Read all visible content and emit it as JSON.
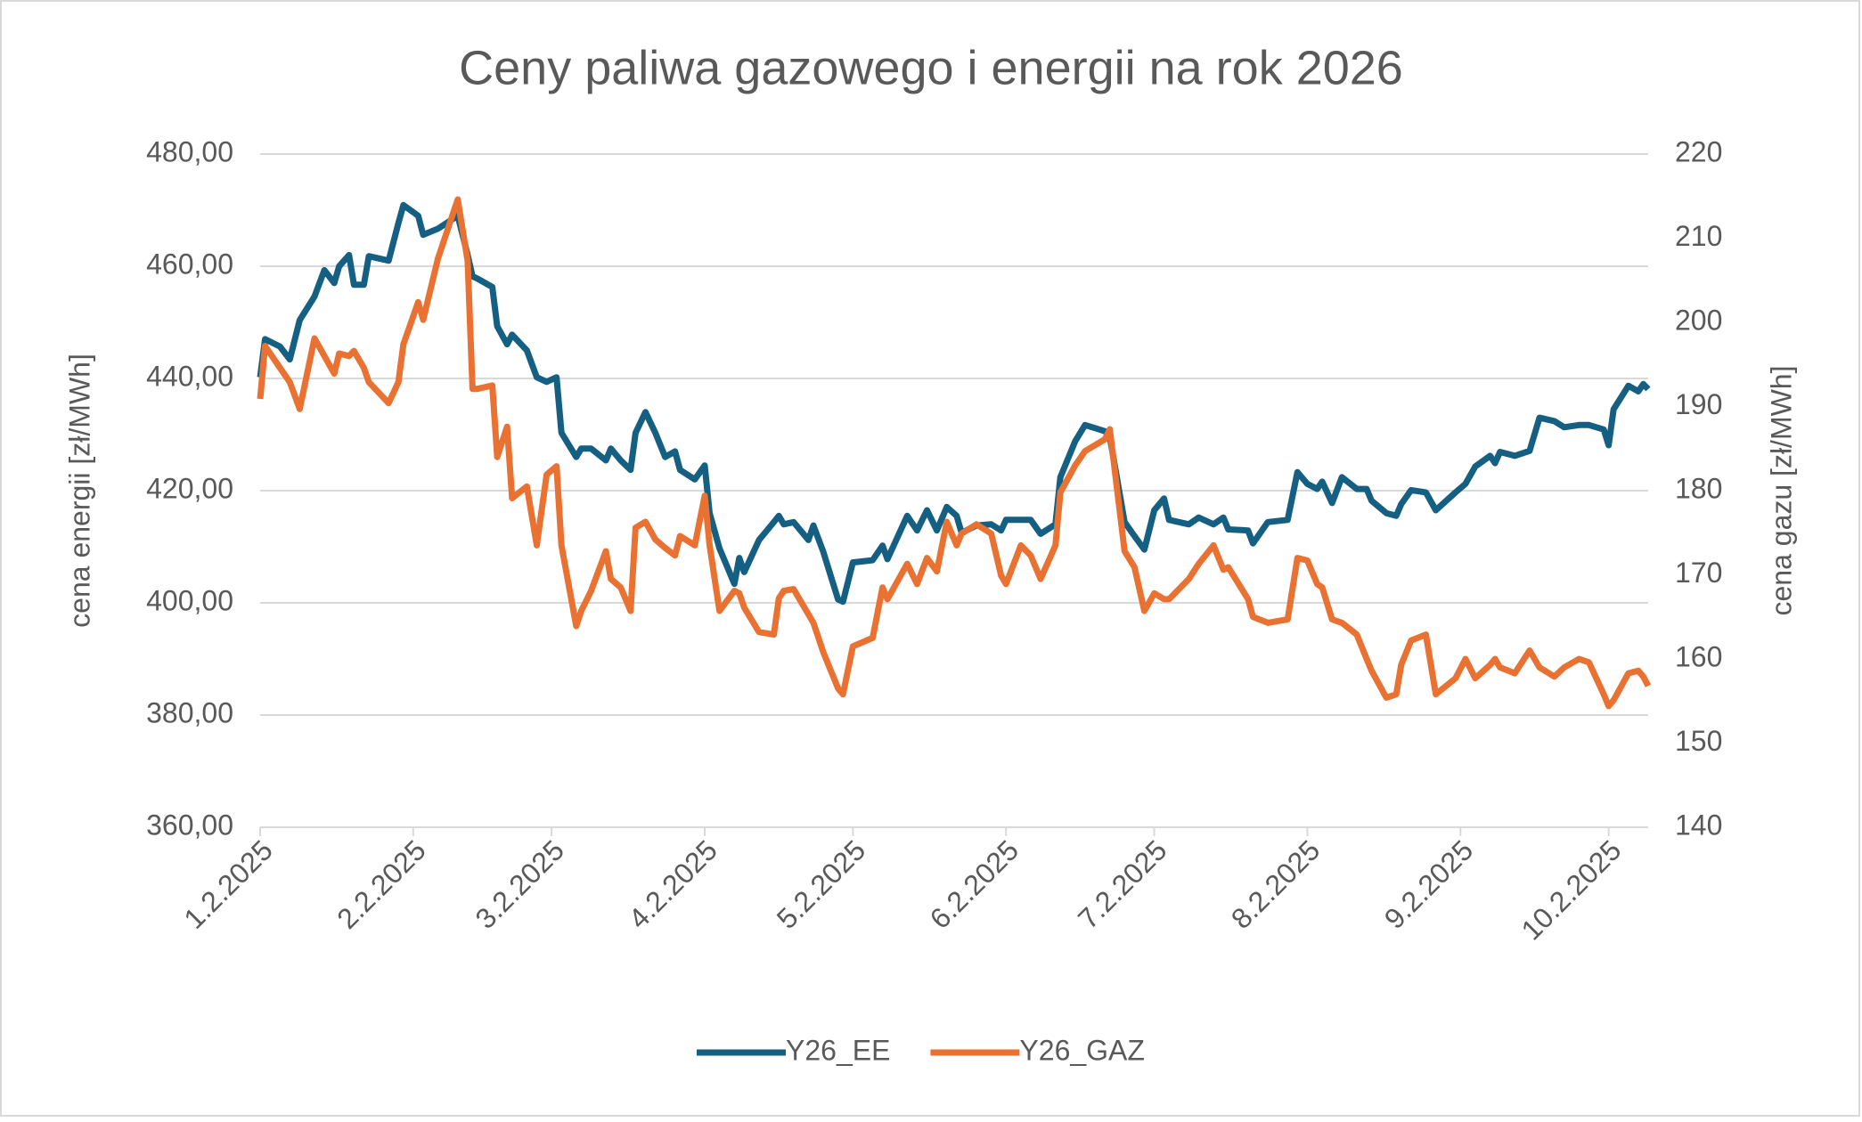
{
  "chart_data": {
    "type": "line",
    "title": "Ceny paliwa gazowego i energii na rok 2026",
    "ylabel": "cena energii [zł/MWh]",
    "y2label": "cena gazu [zł/MWh]",
    "x": [
      0,
      1,
      4,
      6,
      8,
      11,
      13,
      15,
      16,
      18,
      19,
      21,
      22,
      26,
      28,
      29,
      32,
      33,
      36,
      40,
      42,
      43,
      44,
      47,
      48,
      50,
      51,
      54,
      56,
      58,
      60,
      61,
      64,
      65,
      67,
      70,
      71,
      73,
      75,
      76,
      78,
      80,
      82,
      84,
      85,
      88,
      90,
      91,
      93,
      96,
      97,
      98,
      101,
      104,
      105,
      106,
      108,
      111,
      112,
      114,
      117,
      118,
      120,
      124,
      126,
      127,
      131,
      133,
      135,
      137,
      139,
      141,
      142,
      145,
      148,
      150,
      151,
      154,
      156,
      158,
      161,
      162,
      165,
      167,
      171,
      172,
      175,
      177,
      179,
      181,
      183,
      184,
      188,
      190,
      193,
      195,
      196,
      200,
      201,
      204,
      208,
      210,
      212,
      214,
      215,
      217,
      219,
      222,
      224,
      225,
      228,
      230,
      231,
      233,
      236,
      238,
      242,
      244,
      246,
      249,
      250,
      251,
      254,
      257,
      259,
      262,
      264,
      267,
      269,
      272,
      273,
      274,
      277,
      279,
      280,
      281
    ],
    "xlim": [
      0,
      281
    ],
    "xticks": [
      {
        "value": 0,
        "label": "1.2.2025"
      },
      {
        "value": 31,
        "label": "2.2.2025"
      },
      {
        "value": 59,
        "label": "3.2.2025"
      },
      {
        "value": 90,
        "label": "4.2.2025"
      },
      {
        "value": 120,
        "label": "5.2.2025"
      },
      {
        "value": 151,
        "label": "6.2.2025"
      },
      {
        "value": 181,
        "label": "7.2.2025"
      },
      {
        "value": 212,
        "label": "8.2.2025"
      },
      {
        "value": 243,
        "label": "9.2.2025"
      },
      {
        "value": 273,
        "label": "10.2.2025"
      }
    ],
    "ylim": [
      360,
      480
    ],
    "yticks": [
      {
        "value": 360,
        "label": "360,00"
      },
      {
        "value": 380,
        "label": "380,00"
      },
      {
        "value": 400,
        "label": "400,00"
      },
      {
        "value": 420,
        "label": "420,00"
      },
      {
        "value": 440,
        "label": "440,00"
      },
      {
        "value": 460,
        "label": "460,00"
      },
      {
        "value": 480,
        "label": "480,00"
      }
    ],
    "y2lim": [
      140,
      220
    ],
    "y2ticks": [
      140,
      150,
      160,
      170,
      180,
      190,
      200,
      210,
      220
    ],
    "grid": true,
    "legend": "bottom",
    "series": [
      {
        "name": "Y26_EE",
        "color": "#156082",
        "values": [
          440.2,
          447,
          445.7,
          443.4,
          450.4,
          454.6,
          459.3,
          457,
          460,
          462,
          456.7,
          456.7,
          461.8,
          461,
          467.7,
          470.9,
          469,
          465.6,
          466.7,
          469,
          462,
          458.2,
          457.8,
          456.3,
          449.3,
          446.1,
          447.8,
          445,
          440.2,
          439.4,
          440.2,
          430.3,
          426,
          427.5,
          427.5,
          425.4,
          427.5,
          425.4,
          423.7,
          430.3,
          434,
          430.3,
          426,
          427,
          423.7,
          422,
          424.5,
          416,
          409.7,
          403.4,
          408,
          405.5,
          411.2,
          414.4,
          415.5,
          414,
          414.4,
          411.2,
          413.8,
          409.1,
          400.6,
          400.2,
          407.2,
          407.6,
          410.2,
          407.8,
          415.5,
          412.9,
          416.5,
          412.9,
          417.1,
          415.5,
          412.5,
          413.8,
          414,
          412.9,
          414.8,
          414.8,
          414.8,
          412.3,
          414,
          422.4,
          428.8,
          431.7,
          430.6,
          429.6,
          414.4,
          411.9,
          409.5,
          416.5,
          418.6,
          414.8,
          414,
          415.2,
          414,
          415.2,
          413.1,
          412.9,
          410.6,
          414.4,
          414.8,
          423.3,
          421.2,
          420.3,
          421.6,
          417.8,
          422.4,
          420.3,
          420.3,
          418.2,
          416,
          415.5,
          417.6,
          420.1,
          419.7,
          416.5,
          419.7,
          421.2,
          424.3,
          426.2,
          424.9,
          426.9,
          426.2,
          427.1,
          433,
          432.4,
          431.3,
          431.7,
          431.7,
          430.9,
          428.1,
          434.5,
          438.7,
          437.7,
          439,
          438.1
        ]
      },
      {
        "name": "Y26_GAZ",
        "color": "#e97132",
        "axis": "y2",
        "values": [
          190.9,
          197.2,
          194.6,
          192.9,
          189.7,
          198.1,
          196,
          193.9,
          196.3,
          196,
          196.6,
          194.6,
          192.9,
          190.4,
          192.9,
          197.4,
          202.4,
          200.3,
          207.6,
          214.6,
          207.3,
          192.1,
          192.1,
          192.5,
          184,
          187.6,
          179.1,
          180.5,
          173.5,
          181.9,
          182.9,
          173.5,
          163.9,
          165.7,
          168.1,
          172.8,
          169.5,
          168.5,
          165.7,
          175.6,
          176.3,
          174.2,
          173.2,
          172.3,
          174.6,
          173.5,
          179.4,
          173.5,
          165.7,
          168.1,
          167.8,
          166.1,
          163.2,
          162.9,
          167.2,
          168.1,
          168.3,
          165.3,
          164.3,
          160.8,
          156.5,
          155.8,
          161.5,
          162.5,
          168.5,
          167.1,
          171.3,
          168.9,
          172,
          170.4,
          176.3,
          173.5,
          174.9,
          176,
          174.9,
          169.9,
          168.9,
          173.5,
          172.3,
          169.5,
          173.5,
          179.8,
          183,
          184.7,
          186.1,
          187.3,
          172.8,
          170.9,
          165.7,
          167.8,
          167.1,
          167.1,
          169.5,
          171.3,
          173.5,
          170.6,
          170.9,
          167.1,
          165,
          164.3,
          164.7,
          172,
          171.7,
          168.9,
          168.5,
          164.7,
          164.3,
          162.9,
          160,
          158.6,
          155.4,
          155.8,
          159.3,
          162.2,
          162.9,
          155.8,
          157.7,
          160,
          157.7,
          159.3,
          160,
          159,
          158.3,
          161,
          159,
          157.9,
          159,
          160,
          159.6,
          155.8,
          154.4,
          155.1,
          158.3,
          158.6,
          157.9,
          156.8
        ]
      }
    ]
  }
}
